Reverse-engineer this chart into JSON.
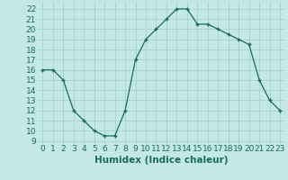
{
  "x": [
    0,
    1,
    2,
    3,
    4,
    5,
    6,
    7,
    8,
    9,
    10,
    11,
    12,
    13,
    14,
    15,
    16,
    17,
    18,
    19,
    20,
    21,
    22,
    23
  ],
  "y": [
    16,
    16,
    15,
    12,
    11,
    10,
    9.5,
    9.5,
    12,
    17,
    19,
    20,
    21,
    22,
    22,
    20.5,
    20.5,
    20,
    19.5,
    19,
    18.5,
    15,
    13,
    12
  ],
  "line_color": "#1a6b5a",
  "marker": "+",
  "bg_color": "#c4e8e6",
  "grid_color": "#9ecfcc",
  "xlabel": "Humidex (Indice chaleur)",
  "ylabel_ticks": [
    9,
    10,
    11,
    12,
    13,
    14,
    15,
    16,
    17,
    18,
    19,
    20,
    21,
    22
  ],
  "ylim": [
    8.7,
    22.7
  ],
  "xlim": [
    -0.5,
    23.5
  ],
  "xtick_labels": [
    "0",
    "1",
    "2",
    "3",
    "4",
    "5",
    "6",
    "7",
    "8",
    "9",
    "10",
    "11",
    "12",
    "13",
    "14",
    "15",
    "16",
    "17",
    "18",
    "19",
    "20",
    "21",
    "22",
    "23"
  ],
  "title_color": "#1a6b5a",
  "font_size": 6.5,
  "xlabel_fontsize": 7.5
}
